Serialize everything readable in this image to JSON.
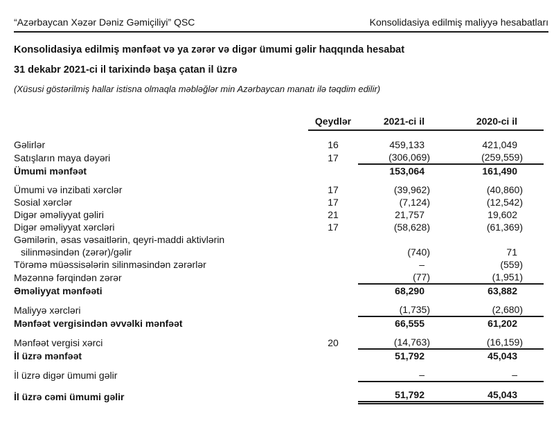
{
  "page_header": {
    "company": "“Azərbaycan Xəzər Dəniz Gəmiçiliyi” QSC",
    "section": "Konsolidasiya edilmiş maliyyə hesabatları"
  },
  "title": "Konsolidasiya edilmiş mənfəət və ya zərər və digər ümumi gəlir haqqında hesabat",
  "period": "31 dekabr 2021-ci il tarixində başa çatan il üzrə",
  "basis_note": "(Xüsusi göstərilmiş hallar istisna olmaqla məbləğlər min Azərbaycan manatı ilə təqdim edilir)",
  "table": {
    "headers": {
      "notes": "Qeydlər",
      "y2021": "2021-ci il",
      "y2020": "2020-ci il"
    },
    "rows": [
      {
        "label": "Gəlirlər",
        "note": "16",
        "v2021": "459,133",
        "v2020": "421,049"
      },
      {
        "label": "Satışların maya dəyəri",
        "note": "17",
        "v2021": "(306,069)",
        "v2020": "(259,559)",
        "rule": "single"
      },
      {
        "label": "Ümumi mənfəət",
        "bold": true,
        "v2021": "153,064",
        "v2020": "161,490"
      },
      {
        "label": "Ümumi və inzibati xərclər",
        "note": "17",
        "v2021": "(39,962)",
        "v2020": "(40,860)",
        "gap": true
      },
      {
        "label": "Sosial xərclər",
        "note": "17",
        "v2021": "(7,124)",
        "v2020": "(12,542)"
      },
      {
        "label": "Digər əməliyyat gəliri",
        "note": "21",
        "v2021": "21,757",
        "v2020": "19,602"
      },
      {
        "label": "Digər əməliyyat xərcləri",
        "note": "17",
        "v2021": "(58,628)",
        "v2020": "(61,369)"
      },
      {
        "label": "Gəmilərin, əsas vəsaitlərin, qeyri-maddi aktivlərin",
        "label2": "silinməsindən (zərər)/gəlir",
        "v2021": "(740)",
        "v2020": "71"
      },
      {
        "label": "Törəmə müəssisələrin silinməsindən zərərlər",
        "v2021": "–",
        "v2020": "(559)"
      },
      {
        "label": "Məzənnə fərqindən zərər",
        "v2021": "(77)",
        "v2020": "(1,951)",
        "rule": "single"
      },
      {
        "label": "Əməliyyat mənfəəti",
        "bold": true,
        "v2021": "68,290",
        "v2020": "63,882"
      },
      {
        "label": "Maliyyə xərcləri",
        "v2021": "(1,735)",
        "v2020": "(2,680)",
        "gap": true,
        "rule": "single"
      },
      {
        "label": "Mənfəət vergisindən əvvəlki mənfəət",
        "bold": true,
        "v2021": "66,555",
        "v2020": "61,202"
      },
      {
        "label": "Mənfəət vergisi xərci",
        "note": "20",
        "v2021": "(14,763)",
        "v2020": "(16,159)",
        "gap": true,
        "rule": "single"
      },
      {
        "label": "İl üzrə mənfəət",
        "bold": true,
        "v2021": "51,792",
        "v2020": "45,043"
      },
      {
        "label": "İl üzrə digər ümumi gəlir",
        "v2021": "–",
        "v2020": "–",
        "gap": true,
        "rule": "single"
      },
      {
        "label": "İl üzrə cəmi ümumi gəlir",
        "bold": true,
        "v2021": "51,792",
        "v2020": "45,043",
        "gap": true,
        "rule": "double"
      }
    ]
  }
}
